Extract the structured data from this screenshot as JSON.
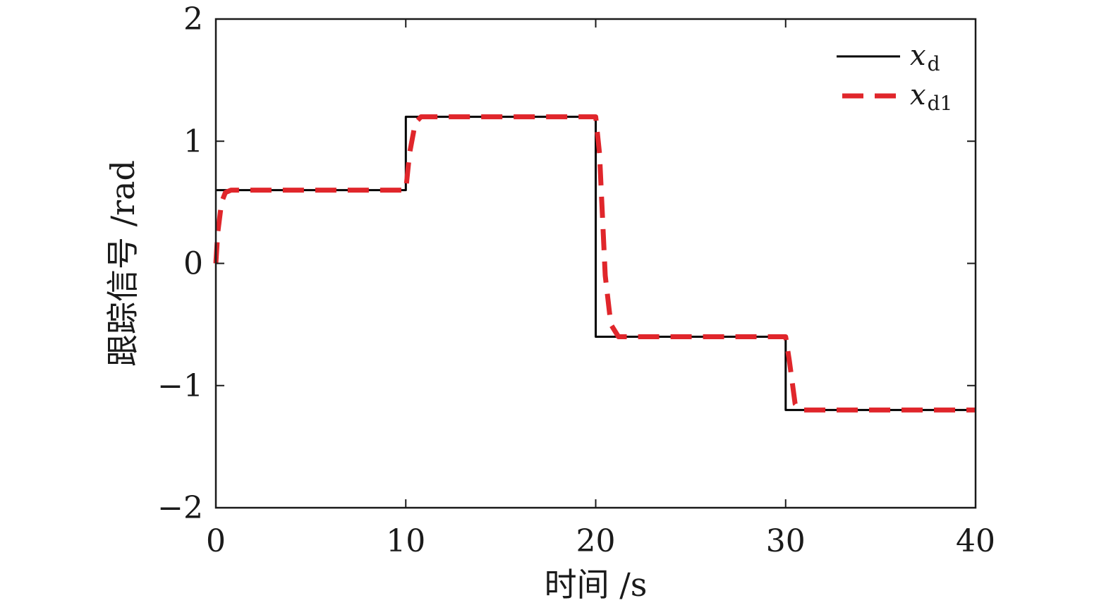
{
  "chart_data": {
    "type": "line",
    "xlabel": "时间 /s",
    "ylabel": "跟踪信号 /rad",
    "xlim": [
      0,
      40
    ],
    "ylim": [
      -2,
      2
    ],
    "x_ticks": [
      0,
      10,
      20,
      30,
      40
    ],
    "x_tick_labels": [
      "0",
      "10",
      "20",
      "30",
      "40"
    ],
    "y_ticks": [
      -2,
      -1,
      0,
      1,
      2
    ],
    "y_tick_labels": [
      "−2",
      "−1",
      "0",
      "1",
      "2"
    ],
    "grid": false,
    "legend_position": "top-right",
    "series": [
      {
        "name": "x_d",
        "legend_main": "x",
        "legend_sub": "d",
        "color": "#000000",
        "style": "solid",
        "x": [
          0,
          10,
          10,
          20,
          20,
          30,
          30,
          40
        ],
        "y": [
          0.6,
          0.6,
          1.2,
          1.2,
          -0.6,
          -0.6,
          -1.2,
          -1.2
        ]
      },
      {
        "name": "x_d1",
        "legend_main": "x",
        "legend_sub": "d1",
        "color": "#e0262b",
        "style": "dashed",
        "x": [
          0,
          0.1,
          0.3,
          0.5,
          0.8,
          10,
          10.2,
          10.5,
          10.8,
          20,
          20.2,
          20.5,
          20.8,
          21.2,
          30,
          30.2,
          30.5,
          30.8,
          40
        ],
        "y": [
          0,
          0.25,
          0.5,
          0.58,
          0.6,
          0.6,
          0.9,
          1.15,
          1.2,
          1.2,
          0.9,
          -0.1,
          -0.5,
          -0.6,
          -0.6,
          -0.8,
          -1.15,
          -1.2,
          -1.2
        ]
      }
    ]
  }
}
